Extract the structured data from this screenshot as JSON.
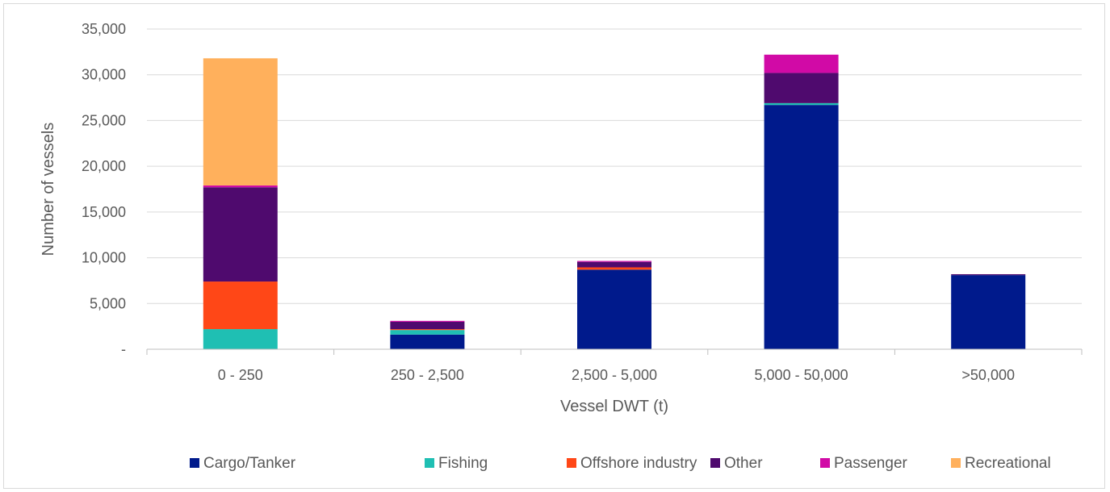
{
  "chart_data": {
    "type": "bar",
    "stacked": true,
    "categories": [
      "0 - 250",
      "250 - 2,500",
      "2,500 - 5,000",
      "5,000 - 50,000",
      ">50,000"
    ],
    "series": [
      {
        "name": "Cargo/Tanker",
        "color": "#001a8c",
        "values": [
          0,
          1600,
          8700,
          26700,
          8100
        ]
      },
      {
        "name": "Fishing",
        "color": "#1fbfb3",
        "values": [
          2200,
          500,
          0,
          200,
          0
        ]
      },
      {
        "name": "Offshore industry",
        "color": "#ff4717",
        "values": [
          5200,
          100,
          250,
          0,
          0
        ]
      },
      {
        "name": "Other",
        "color": "#4f0a6e",
        "values": [
          10300,
          800,
          600,
          3300,
          100
        ]
      },
      {
        "name": "Passenger",
        "color": "#d10aa6",
        "values": [
          200,
          100,
          100,
          2000,
          0
        ]
      },
      {
        "name": "Recreational",
        "color": "#ffb05c",
        "values": [
          13900,
          0,
          0,
          0,
          0
        ]
      }
    ],
    "xlabel": "Vessel DWT (t)",
    "ylabel": "Number of vessels",
    "ylim": [
      0,
      35000
    ],
    "yticks": [
      0,
      5000,
      10000,
      15000,
      20000,
      25000,
      30000,
      35000
    ],
    "ytick_labels": [
      "-",
      "5,000",
      "10,000",
      "15,000",
      "20,000",
      "25,000",
      "30,000",
      "35,000"
    ],
    "grid": true,
    "legend_position": "bottom"
  }
}
